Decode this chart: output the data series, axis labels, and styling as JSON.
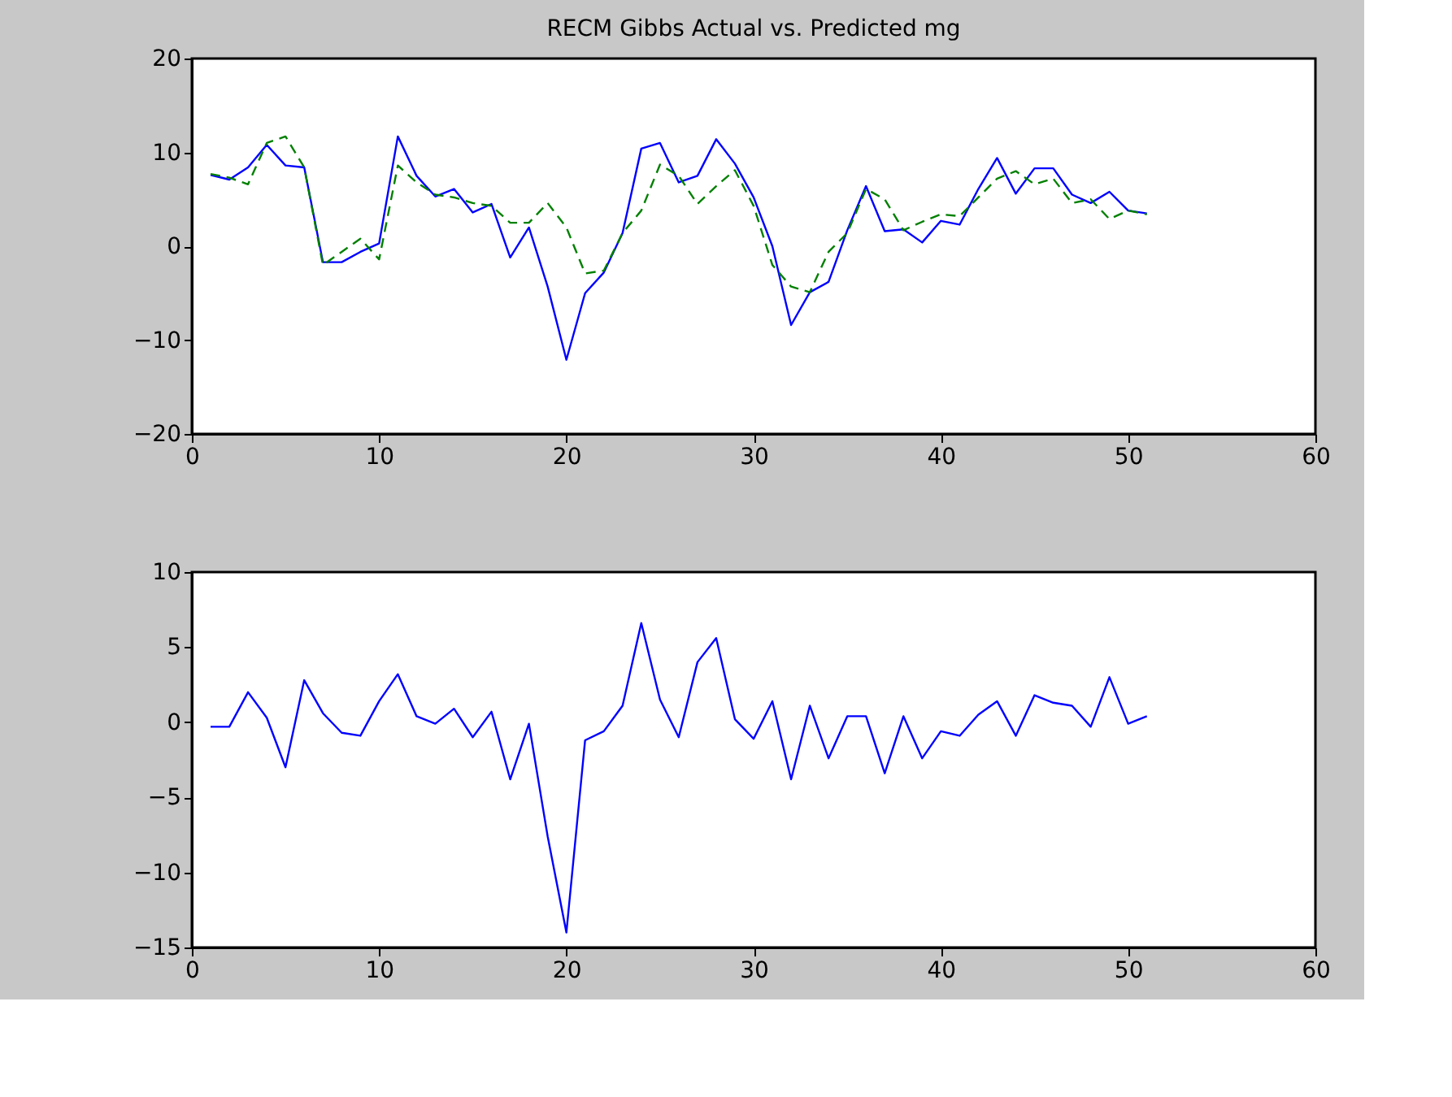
{
  "chart_data": [
    {
      "type": "line",
      "title": "RECM Gibbs Actual vs. Predicted  mg",
      "x": [
        1,
        2,
        3,
        4,
        5,
        6,
        7,
        8,
        9,
        10,
        11,
        12,
        13,
        14,
        15,
        16,
        17,
        18,
        19,
        20,
        21,
        22,
        23,
        24,
        25,
        26,
        27,
        28,
        29,
        30,
        31,
        32,
        33,
        34,
        35,
        36,
        37,
        38,
        39,
        40,
        41,
        42,
        43,
        44,
        45,
        46,
        47,
        48,
        49,
        50,
        51
      ],
      "series": [
        {
          "color": "#0000ff",
          "line_style": "solid",
          "values": [
            7.6,
            7.1,
            8.4,
            10.8,
            8.6,
            8.4,
            -1.7,
            -1.7,
            -0.6,
            0.3,
            11.7,
            7.5,
            5.3,
            6.1,
            3.6,
            4.5,
            -1.2,
            2.0,
            -4.3,
            -12.1,
            -5.0,
            -2.8,
            1.4,
            10.4,
            11.0,
            6.8,
            7.5,
            11.4,
            8.8,
            5.2,
            0.0,
            -8.4,
            -4.9,
            -3.8,
            1.7,
            6.4,
            1.6,
            1.8,
            0.4,
            2.7,
            2.3,
            6.1,
            9.4,
            5.6,
            8.3,
            8.3,
            5.5,
            4.6,
            5.8,
            3.8,
            3.5
          ]
        },
        {
          "color": "#008000",
          "line_style": "dashed",
          "values": [
            7.7,
            7.3,
            6.6,
            11.0,
            11.7,
            8.4,
            -2.0,
            -0.6,
            0.8,
            -1.4,
            8.6,
            6.8,
            5.5,
            5.2,
            4.6,
            4.3,
            2.5,
            2.5,
            4.6,
            2.0,
            -2.9,
            -2.6,
            1.4,
            3.8,
            8.7,
            7.5,
            4.5,
            6.4,
            8.1,
            4.3,
            -2.0,
            -4.3,
            -4.9,
            -0.6,
            1.4,
            6.1,
            5.0,
            1.7,
            2.6,
            3.4,
            3.2,
            5.2,
            7.2,
            8.0,
            6.6,
            7.2,
            4.6,
            5.0,
            2.9,
            3.8,
            3.4
          ]
        }
      ],
      "xlim": [
        0,
        60
      ],
      "xticks": [
        0,
        10,
        20,
        30,
        40,
        50,
        60
      ],
      "ylim": [
        -20,
        20
      ],
      "yticks": [
        -20,
        -10,
        0,
        10,
        20
      ],
      "grid": false
    },
    {
      "type": "line",
      "x": [
        1,
        2,
        3,
        4,
        5,
        6,
        7,
        8,
        9,
        10,
        11,
        12,
        13,
        14,
        15,
        16,
        17,
        18,
        19,
        20,
        21,
        22,
        23,
        24,
        25,
        26,
        27,
        28,
        29,
        30,
        31,
        32,
        33,
        34,
        35,
        36,
        37,
        38,
        39,
        40,
        41,
        42,
        43,
        44,
        45,
        46,
        47,
        48,
        49,
        50,
        51
      ],
      "series": [
        {
          "color": "#0000ff",
          "line_style": "solid",
          "values": [
            -0.3,
            -0.3,
            2.0,
            0.3,
            -3.0,
            2.8,
            0.6,
            -0.7,
            -0.9,
            1.4,
            3.2,
            0.4,
            -0.1,
            0.9,
            -1.0,
            0.7,
            -3.8,
            -0.1,
            -7.6,
            -14.0,
            -1.2,
            -0.6,
            1.1,
            6.6,
            1.5,
            -1.0,
            4.0,
            5.6,
            0.2,
            -1.1,
            1.4,
            -3.8,
            1.1,
            -2.4,
            0.4,
            0.4,
            -3.4,
            0.4,
            -2.4,
            -0.6,
            -0.9,
            0.5,
            1.4,
            -0.9,
            1.8,
            1.3,
            1.1,
            -0.3,
            3.0,
            -0.1,
            0.4
          ]
        }
      ],
      "xlim": [
        0,
        60
      ],
      "xticks": [
        0,
        10,
        20,
        30,
        40,
        50,
        60
      ],
      "ylim": [
        -15,
        10
      ],
      "yticks": [
        -15,
        -10,
        -5,
        0,
        5,
        10
      ],
      "grid": false
    }
  ]
}
